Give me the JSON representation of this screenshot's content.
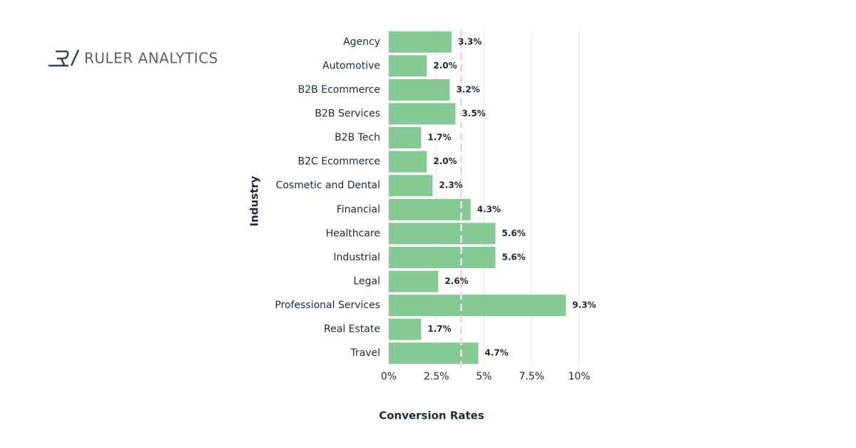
{
  "brand": "RULER ANALYTICS",
  "chart_data": {
    "type": "bar",
    "orientation": "horizontal",
    "x_label": "Conversion Rates",
    "y_label": "Industry",
    "categories": [
      "Agency",
      "Automotive",
      "B2B Ecommerce",
      "B2B Services",
      "B2B Tech",
      "B2C Ecommerce",
      "Cosmetic and Dental",
      "Financial",
      "Healthcare",
      "Industrial",
      "Legal",
      "Professional Services",
      "Real Estate",
      "Travel"
    ],
    "values": [
      3.3,
      2.0,
      3.2,
      3.5,
      1.7,
      2.0,
      2.3,
      4.3,
      5.6,
      5.6,
      2.6,
      9.3,
      1.7,
      4.7
    ],
    "value_labels": [
      "3.3%",
      "2.0%",
      "3.2%",
      "3.5%",
      "1.7%",
      "2.0%",
      "2.3%",
      "4.3%",
      "5.6%",
      "5.6%",
      "2.6%",
      "9.3%",
      "1.7%",
      "4.7%"
    ],
    "color": "#85c995",
    "xlim": [
      0,
      10
    ],
    "xticks": [
      {
        "value": 0,
        "label": "0%"
      },
      {
        "value": 2.5,
        "label": "2.5%"
      },
      {
        "value": 5,
        "label": "5%"
      },
      {
        "value": 7.5,
        "label": "7.5%"
      },
      {
        "value": 10,
        "label": "10%"
      }
    ],
    "grid": true,
    "reference_line": {
      "value": 3.8,
      "color": "#f9d2de"
    }
  }
}
